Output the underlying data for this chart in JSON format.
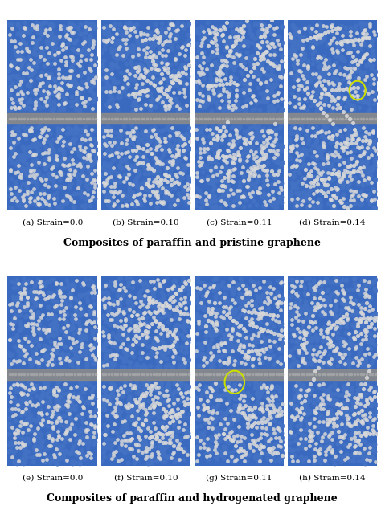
{
  "fig_width": 4.74,
  "fig_height": 6.3,
  "dpi": 100,
  "bg_color": "#ffffff",
  "panel_bg": "#4472c4",
  "paraffin_color": "#c8c8c8",
  "graphene_color": "#a0a0a0",
  "blue_color": "#3a6abf",
  "row1_labels": [
    "(a) Strain=0.0",
    "(b) Strain=0.10",
    "(c) Strain=0.11",
    "(d) Strain=0.14"
  ],
  "row2_labels": [
    "(e) Strain=0.0",
    "(f) Strain=0.10",
    "(g) Strain=0.11",
    "(h) Strain=0.14"
  ],
  "row1_title": "Composites of paraffin and pristine graphene",
  "row2_title": "Composites of paraffin and hydrogenated graphene",
  "circle_color": "#ccdd00",
  "label_fontsize": 7.5,
  "title_fontsize": 9,
  "panel_cols": 4,
  "panel_rows": 2
}
